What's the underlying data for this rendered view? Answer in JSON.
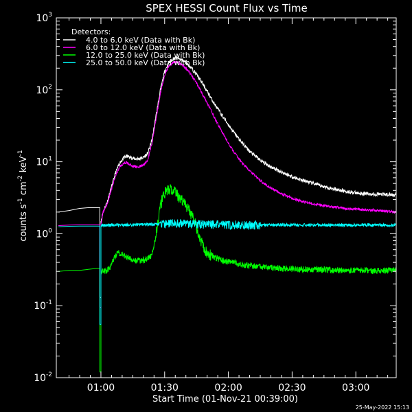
{
  "chart_data": {
    "type": "line",
    "title": "SPEX HESSI Count Flux vs Time",
    "xlabel": "Start Time (01-Nov-21 00:39:00)",
    "ylabel_parts": [
      "counts s",
      "-1",
      " cm",
      "-2",
      " keV",
      "-1"
    ],
    "yscale": "log",
    "ylim": [
      0.01,
      1000
    ],
    "xlim_minutes": [
      39.0,
      199.0
    ],
    "x_ticks": [
      {
        "m": 60,
        "label": "01:00"
      },
      {
        "m": 90,
        "label": "01:30"
      },
      {
        "m": 120,
        "label": "02:00"
      },
      {
        "m": 150,
        "label": "02:30"
      },
      {
        "m": 180,
        "label": "03:00"
      }
    ],
    "y_ticks": [
      {
        "exp": -2,
        "base": "10",
        "sup": "-2"
      },
      {
        "exp": -1,
        "base": "10",
        "sup": "-1"
      },
      {
        "exp": 0,
        "base": "10",
        "sup": "0"
      },
      {
        "exp": 1,
        "base": "10",
        "sup": "1"
      },
      {
        "exp": 2,
        "base": "10",
        "sup": "2"
      },
      {
        "exp": 3,
        "base": "10",
        "sup": "3"
      }
    ],
    "legend_title": "Detectors:",
    "legend_position": "top-left",
    "series": [
      {
        "name": "4.0 to 6.0 keV (Data with Bk)",
        "color": "#ffffff",
        "points": [
          [
            40,
            2.0
          ],
          [
            45,
            2.1
          ],
          [
            50,
            2.25
          ],
          [
            54,
            2.3
          ],
          [
            58,
            2.3
          ],
          [
            59.5,
            2.3
          ],
          [
            59.5,
            0.13
          ],
          [
            60,
            0.13
          ],
          [
            60,
            1.5
          ],
          [
            61,
            2.0
          ],
          [
            63,
            2.8
          ],
          [
            65,
            4.5
          ],
          [
            67,
            7.2
          ],
          [
            69,
            9.8
          ],
          [
            71,
            11.5
          ],
          [
            72,
            12.0
          ],
          [
            74,
            11.5
          ],
          [
            76,
            11.0
          ],
          [
            78,
            11.0
          ],
          [
            80,
            11.5
          ],
          [
            82,
            13.0
          ],
          [
            84,
            20
          ],
          [
            86,
            45
          ],
          [
            88,
            100
          ],
          [
            90,
            180
          ],
          [
            92,
            240
          ],
          [
            94,
            270
          ],
          [
            96,
            275
          ],
          [
            98,
            260
          ],
          [
            100,
            240
          ],
          [
            102,
            210
          ],
          [
            105,
            165
          ],
          [
            108,
            120
          ],
          [
            111,
            85
          ],
          [
            114,
            60
          ],
          [
            118,
            40
          ],
          [
            122,
            27
          ],
          [
            126,
            19
          ],
          [
            130,
            14
          ],
          [
            135,
            10.5
          ],
          [
            140,
            8.5
          ],
          [
            145,
            7.2
          ],
          [
            150,
            6.2
          ],
          [
            155,
            5.5
          ],
          [
            160,
            5.0
          ],
          [
            165,
            4.5
          ],
          [
            170,
            4.2
          ],
          [
            175,
            3.9
          ],
          [
            180,
            3.7
          ],
          [
            185,
            3.6
          ],
          [
            190,
            3.55
          ],
          [
            195,
            3.5
          ],
          [
            199,
            3.5
          ]
        ]
      },
      {
        "name": "6.0 to 12.0 keV (Data with Bk)",
        "color": "#ff00ff",
        "points": [
          [
            40,
            1.3
          ],
          [
            45,
            1.32
          ],
          [
            50,
            1.33
          ],
          [
            54,
            1.33
          ],
          [
            58,
            1.33
          ],
          [
            59.5,
            1.33
          ],
          [
            59.5,
            0.095
          ],
          [
            60,
            0.095
          ],
          [
            60,
            1.3
          ],
          [
            61,
            2.0
          ],
          [
            63,
            2.6
          ],
          [
            65,
            4.2
          ],
          [
            67,
            6.5
          ],
          [
            69,
            8.7
          ],
          [
            71,
            9.5
          ],
          [
            72,
            9.8
          ],
          [
            74,
            9.0
          ],
          [
            76,
            8.5
          ],
          [
            78,
            8.5
          ],
          [
            80,
            9.0
          ],
          [
            82,
            10.5
          ],
          [
            84,
            18
          ],
          [
            86,
            40
          ],
          [
            88,
            90
          ],
          [
            90,
            160
          ],
          [
            92,
            215
          ],
          [
            94,
            240
          ],
          [
            96,
            245
          ],
          [
            98,
            225
          ],
          [
            100,
            200
          ],
          [
            102,
            170
          ],
          [
            105,
            125
          ],
          [
            108,
            85
          ],
          [
            111,
            58
          ],
          [
            114,
            38
          ],
          [
            118,
            23
          ],
          [
            122,
            14.5
          ],
          [
            126,
            10
          ],
          [
            130,
            7.5
          ],
          [
            135,
            5.5
          ],
          [
            140,
            4.3
          ],
          [
            145,
            3.6
          ],
          [
            150,
            3.1
          ],
          [
            155,
            2.8
          ],
          [
            160,
            2.6
          ],
          [
            165,
            2.45
          ],
          [
            170,
            2.35
          ],
          [
            175,
            2.25
          ],
          [
            180,
            2.2
          ],
          [
            185,
            2.15
          ],
          [
            190,
            2.1
          ],
          [
            195,
            2.05
          ],
          [
            199,
            2.0
          ]
        ]
      },
      {
        "name": "12.0 to 25.0 keV (Data with Bk)",
        "color": "#00ff00",
        "points": [
          [
            40,
            0.3
          ],
          [
            45,
            0.31
          ],
          [
            50,
            0.31
          ],
          [
            54,
            0.32
          ],
          [
            58,
            0.33
          ],
          [
            59.5,
            0.33
          ],
          [
            59.5,
            0.012
          ],
          [
            60,
            0.012
          ],
          [
            60,
            0.3
          ],
          [
            62,
            0.3
          ],
          [
            64,
            0.33
          ],
          [
            66,
            0.45
          ],
          [
            68,
            0.55
          ],
          [
            70,
            0.52
          ],
          [
            72,
            0.48
          ],
          [
            74,
            0.45
          ],
          [
            76,
            0.43
          ],
          [
            78,
            0.42
          ],
          [
            80,
            0.43
          ],
          [
            82,
            0.45
          ],
          [
            84,
            0.5
          ],
          [
            86,
            1.0
          ],
          [
            88,
            2.5
          ],
          [
            90,
            3.8
          ],
          [
            92,
            4.2
          ],
          [
            94,
            4.0
          ],
          [
            96,
            3.5
          ],
          [
            98,
            3.0
          ],
          [
            100,
            2.5
          ],
          [
            102,
            2.0
          ],
          [
            104,
            1.5
          ],
          [
            106,
            1.0
          ],
          [
            108,
            0.7
          ],
          [
            110,
            0.55
          ],
          [
            112,
            0.5
          ],
          [
            115,
            0.45
          ],
          [
            118,
            0.42
          ],
          [
            122,
            0.4
          ],
          [
            126,
            0.38
          ],
          [
            130,
            0.36
          ],
          [
            135,
            0.35
          ],
          [
            140,
            0.34
          ],
          [
            145,
            0.33
          ],
          [
            150,
            0.33
          ],
          [
            155,
            0.32
          ],
          [
            160,
            0.32
          ],
          [
            165,
            0.32
          ],
          [
            170,
            0.31
          ],
          [
            175,
            0.31
          ],
          [
            180,
            0.31
          ],
          [
            185,
            0.31
          ],
          [
            190,
            0.31
          ],
          [
            195,
            0.31
          ],
          [
            199,
            0.31
          ]
        ]
      },
      {
        "name": "25.0 to 50.0 keV (Data with Bk)",
        "color": "#00ffff",
        "points": [
          [
            40,
            1.25
          ],
          [
            45,
            1.27
          ],
          [
            50,
            1.28
          ],
          [
            54,
            1.28
          ],
          [
            58,
            1.28
          ],
          [
            59.5,
            1.28
          ],
          [
            59.5,
            0.055
          ],
          [
            60,
            0.055
          ],
          [
            60,
            1.3
          ],
          [
            65,
            1.32
          ],
          [
            70,
            1.33
          ],
          [
            75,
            1.33
          ],
          [
            80,
            1.34
          ],
          [
            85,
            1.35
          ],
          [
            90,
            1.38
          ],
          [
            95,
            1.4
          ],
          [
            100,
            1.38
          ],
          [
            105,
            1.36
          ],
          [
            110,
            1.35
          ],
          [
            120,
            1.34
          ],
          [
            130,
            1.33
          ],
          [
            140,
            1.32
          ],
          [
            150,
            1.32
          ],
          [
            160,
            1.32
          ],
          [
            170,
            1.32
          ],
          [
            180,
            1.32
          ],
          [
            190,
            1.32
          ],
          [
            199,
            1.32
          ]
        ]
      }
    ],
    "timestamp": "25-May-2022 15:13"
  }
}
